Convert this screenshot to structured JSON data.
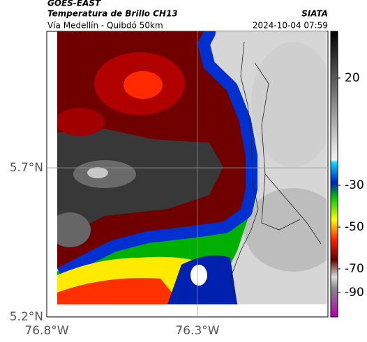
{
  "header": {
    "satellite": "GOES-EAST",
    "title": "Temperatura de Brillo CH13",
    "subtitle": "Vía Medellín - Quibdó 50km",
    "source": "SIATA",
    "timestamp": "2024-10-04 07:59"
  },
  "axes": {
    "y_labels": [
      "5.7°N",
      "5.2°N"
    ],
    "x_labels": [
      "76.8°W",
      "76.3°W"
    ]
  },
  "colorbar": {
    "ticks": [
      "20",
      "-30",
      "-50",
      "-70",
      "-90"
    ]
  }
}
